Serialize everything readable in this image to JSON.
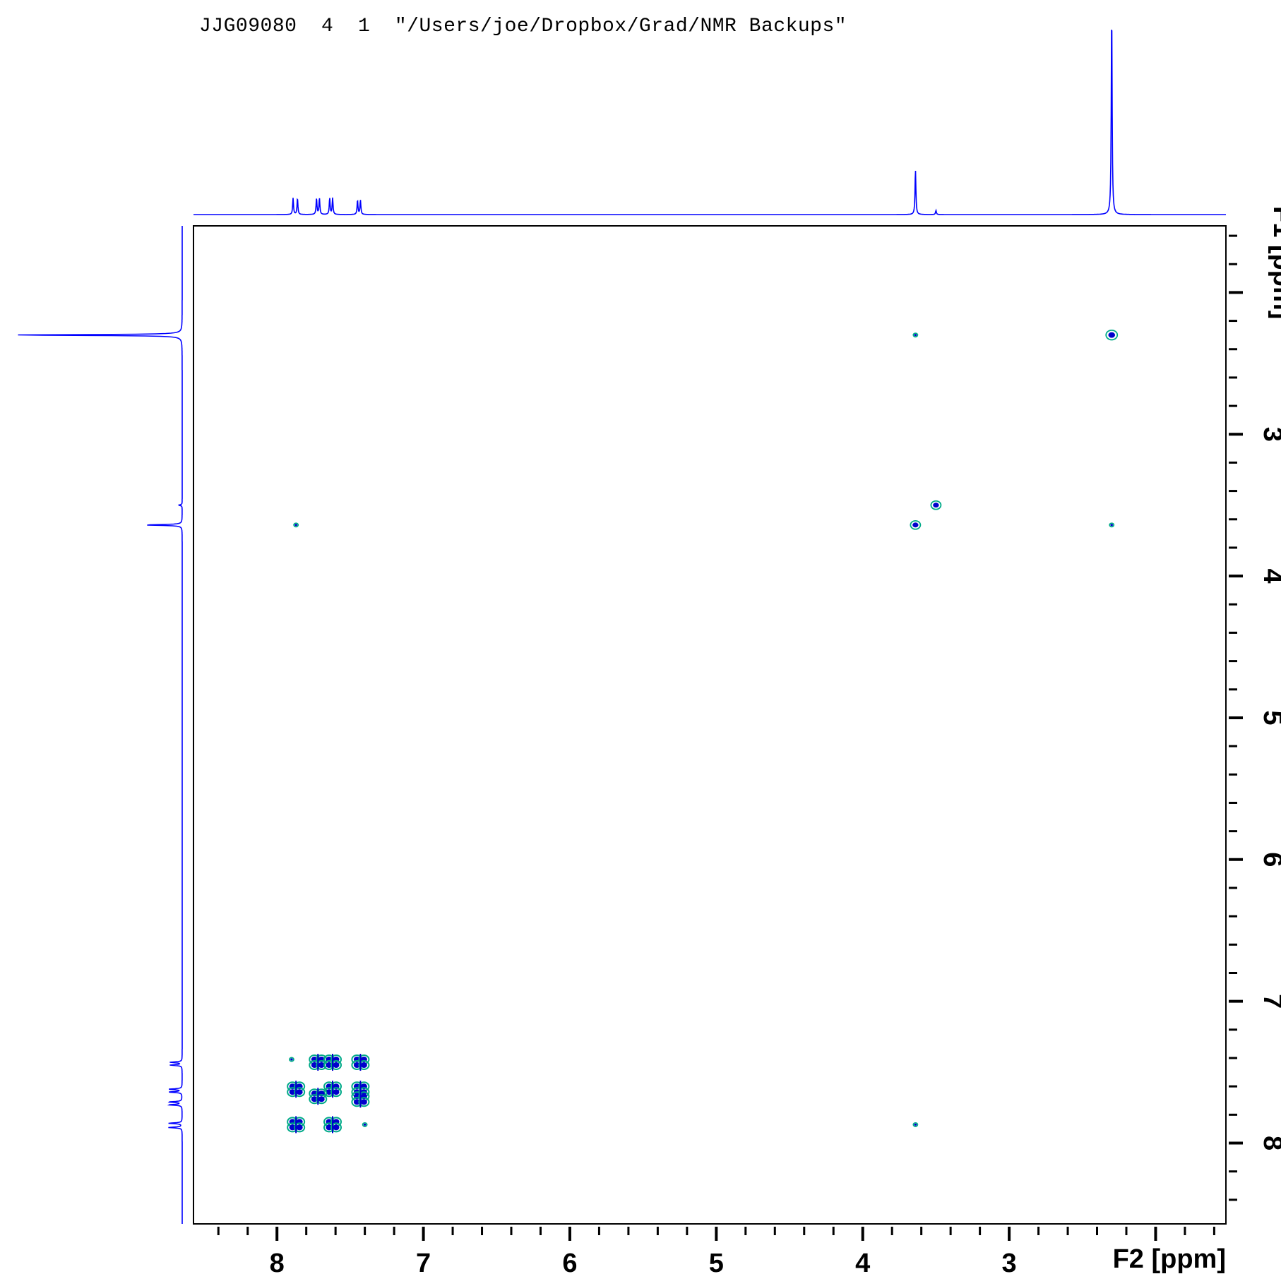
{
  "header": {
    "experiment": "JJG09080",
    "expno": "4",
    "procno": "1",
    "path": "\"/Users/joe/Dropbox/Grad/NMR Backups\""
  },
  "chart_data": {
    "type": "contour",
    "experiment_kind": "2D homonuclear correlation (COSY-type) with 1D projections",
    "x_axis": {
      "label": "F2 [ppm]",
      "range": [
        8.57,
        1.52
      ],
      "reversed": true,
      "ticks": [
        8,
        7,
        6,
        5,
        4,
        3
      ]
    },
    "y_axis": {
      "label": "F1 [ppm]",
      "range": [
        1.53,
        8.57
      ],
      "position": "right",
      "ticks": [
        3,
        4,
        5,
        6,
        7,
        8
      ]
    },
    "colors": {
      "projection": "#0000ff",
      "contour_outer": "#00aa88",
      "contour_inner": "#0000cc",
      "frame": "#000000"
    },
    "projection_peaks": [
      {
        "ppm": 7.89,
        "height": 0.08
      },
      {
        "ppm": 7.86,
        "height": 0.08
      },
      {
        "ppm": 7.73,
        "height": 0.08
      },
      {
        "ppm": 7.71,
        "height": 0.08
      },
      {
        "ppm": 7.64,
        "height": 0.08
      },
      {
        "ppm": 7.62,
        "height": 0.08
      },
      {
        "ppm": 7.45,
        "height": 0.07
      },
      {
        "ppm": 7.43,
        "height": 0.07
      },
      {
        "ppm": 3.64,
        "height": 0.22
      },
      {
        "ppm": 3.5,
        "height": 0.02
      },
      {
        "ppm": 2.3,
        "height": 1.0
      }
    ],
    "cross_peaks": [
      {
        "f2": 2.3,
        "f1": 2.3,
        "size": "medium"
      },
      {
        "f2": 3.64,
        "f1": 2.3,
        "size": "tiny"
      },
      {
        "f2": 3.5,
        "f1": 3.5,
        "size": "small"
      },
      {
        "f2": 3.64,
        "f1": 3.64,
        "size": "small"
      },
      {
        "f2": 7.87,
        "f1": 3.64,
        "size": "tiny"
      },
      {
        "f2": 2.3,
        "f1": 3.64,
        "size": "tiny"
      },
      {
        "f2": 3.64,
        "f1": 7.87,
        "size": "tiny"
      },
      {
        "f2": 7.87,
        "f1": 7.87,
        "size": "large"
      },
      {
        "f2": 7.62,
        "f1": 7.87,
        "size": "large"
      },
      {
        "f2": 7.87,
        "f1": 7.62,
        "size": "large"
      },
      {
        "f2": 7.62,
        "f1": 7.62,
        "size": "large"
      },
      {
        "f2": 7.72,
        "f1": 7.67,
        "size": "large"
      },
      {
        "f2": 7.43,
        "f1": 7.62,
        "size": "large"
      },
      {
        "f2": 7.43,
        "f1": 7.69,
        "size": "large"
      },
      {
        "f2": 7.72,
        "f1": 7.43,
        "size": "large"
      },
      {
        "f2": 7.62,
        "f1": 7.43,
        "size": "large"
      },
      {
        "f2": 7.43,
        "f1": 7.43,
        "size": "large"
      },
      {
        "f2": 7.9,
        "f1": 7.41,
        "size": "tiny"
      },
      {
        "f2": 7.4,
        "f1": 7.87,
        "size": "tiny"
      }
    ]
  }
}
